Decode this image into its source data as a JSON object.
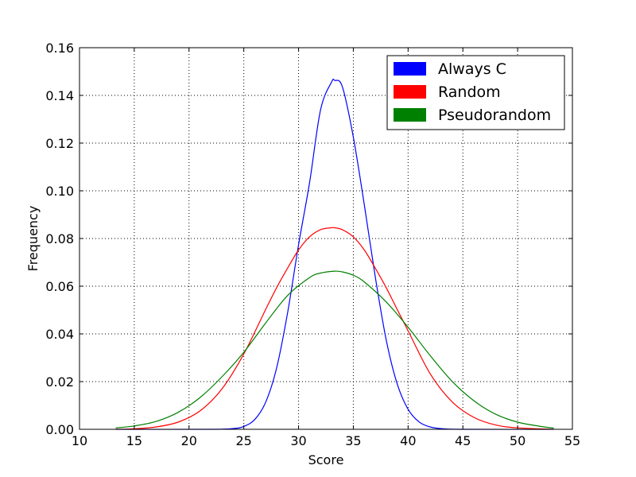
{
  "chart_data": {
    "type": "line",
    "title": "",
    "xlabel": "Score",
    "ylabel": "Frequency",
    "xlim": [
      10,
      55
    ],
    "ylim": [
      0,
      0.16
    ],
    "xticks": [
      10,
      15,
      20,
      25,
      30,
      35,
      40,
      45,
      50,
      55
    ],
    "yticks": [
      0.0,
      0.02,
      0.04,
      0.06,
      0.08,
      0.1,
      0.12,
      0.14,
      0.16
    ],
    "xtick_labels": [
      "10",
      "15",
      "20",
      "25",
      "30",
      "35",
      "40",
      "45",
      "50",
      "55"
    ],
    "ytick_labels": [
      "0.00",
      "0.02",
      "0.04",
      "0.06",
      "0.08",
      "0.10",
      "0.12",
      "0.14",
      "0.16"
    ],
    "grid": true,
    "legend_position": "top-right",
    "series": [
      {
        "name": "Always C",
        "color": "#0000ff",
        "x": [
          13.3,
          22,
          24,
          25,
          26,
          27,
          28,
          29,
          30,
          31,
          32,
          33,
          33.3,
          34,
          35,
          36,
          37,
          38,
          39,
          40,
          41,
          42,
          43,
          45,
          53.3
        ],
        "y": [
          0,
          0,
          0.0003,
          0.0012,
          0.0041,
          0.0114,
          0.0258,
          0.0489,
          0.0774,
          0.1033,
          0.1338,
          0.1455,
          0.1463,
          0.1436,
          0.1225,
          0.0942,
          0.064,
          0.0375,
          0.0191,
          0.0084,
          0.0031,
          0.001,
          0.0003,
          0,
          0
        ]
      },
      {
        "name": "Random",
        "color": "#ff0000",
        "x": [
          13.3,
          15,
          17,
          19,
          21,
          23,
          25,
          27,
          28,
          29,
          30,
          31,
          32,
          33,
          33.3,
          34,
          35,
          36,
          37,
          38,
          39,
          40,
          42,
          44,
          46,
          48,
          50,
          53.3
        ],
        "y": [
          0,
          0.0002,
          0.001,
          0.003,
          0.0077,
          0.0169,
          0.0316,
          0.0503,
          0.0594,
          0.0676,
          0.0752,
          0.0807,
          0.0837,
          0.0845,
          0.0845,
          0.0837,
          0.0807,
          0.0752,
          0.0676,
          0.0594,
          0.0503,
          0.0413,
          0.0234,
          0.0116,
          0.005,
          0.0018,
          0.0006,
          0
        ]
      },
      {
        "name": "Pseudorandom",
        "color": "#008000",
        "x": [
          13.3,
          15,
          17,
          19,
          21,
          23,
          25,
          27,
          29,
          31,
          32,
          33.3,
          34,
          35,
          36,
          38,
          40,
          42,
          44,
          46,
          48,
          50,
          52,
          53.3
        ],
        "y": [
          0.0006,
          0.0014,
          0.0033,
          0.0071,
          0.0133,
          0.022,
          0.0323,
          0.0446,
          0.0561,
          0.0636,
          0.0655,
          0.0663,
          0.066,
          0.0646,
          0.0618,
          0.0534,
          0.0428,
          0.031,
          0.0202,
          0.012,
          0.0063,
          0.003,
          0.0013,
          0.0005
        ]
      }
    ]
  }
}
